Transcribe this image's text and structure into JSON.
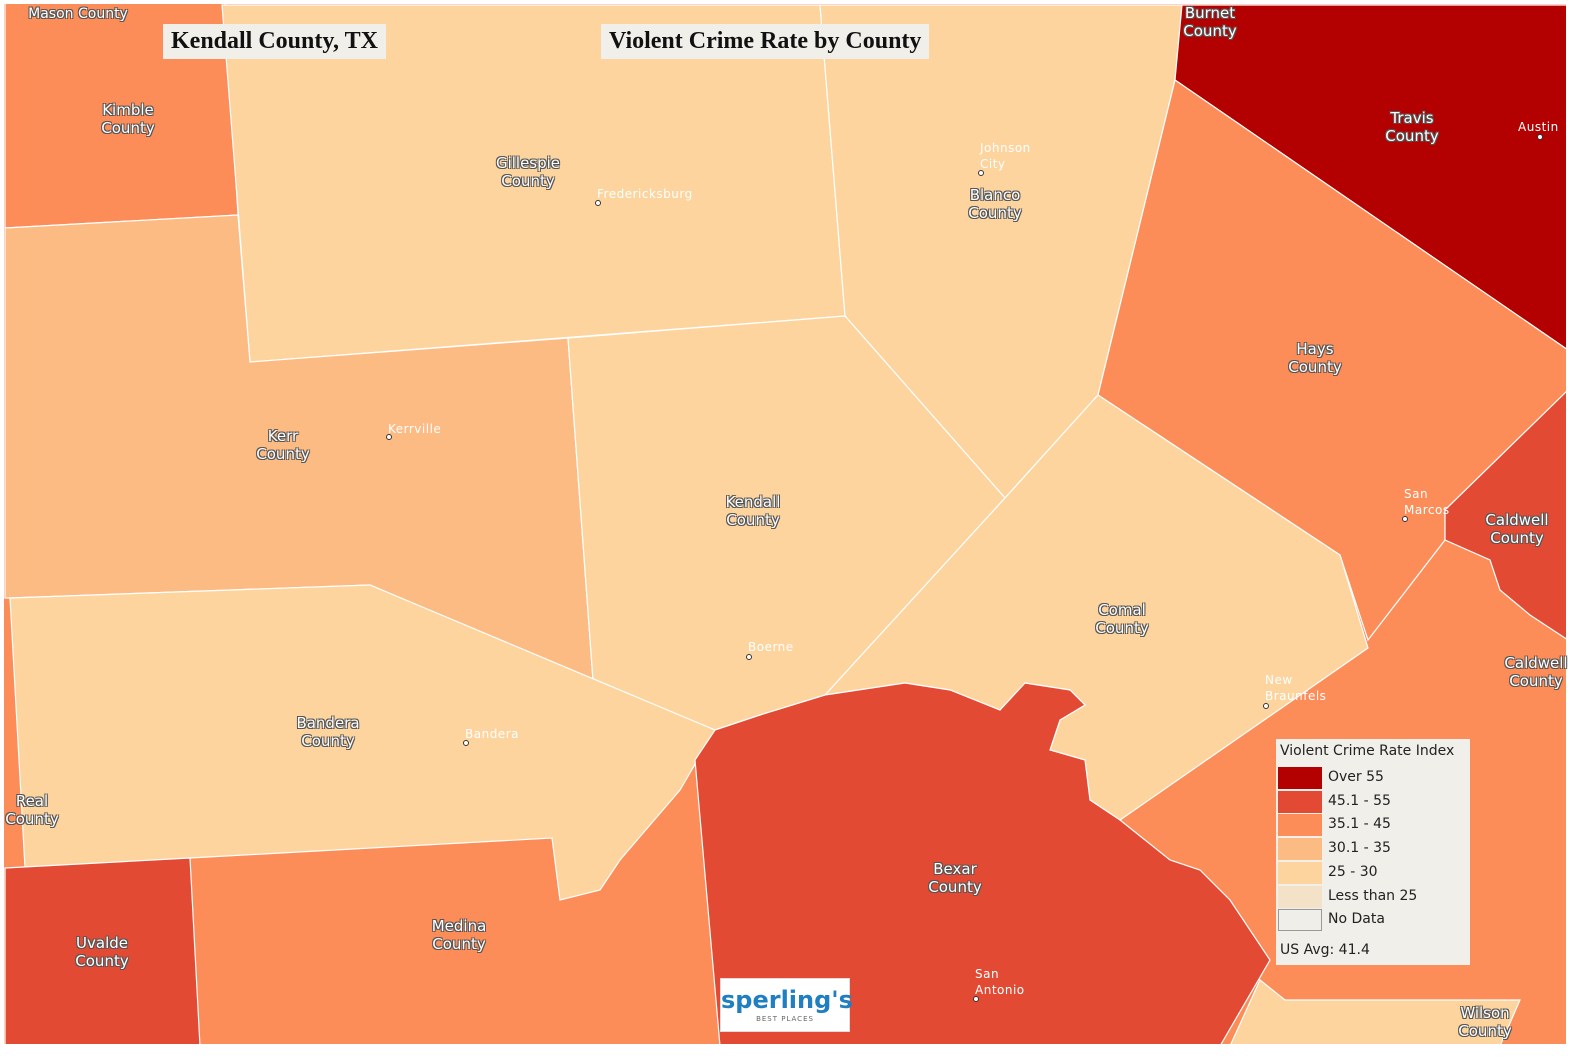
{
  "title": "Kendall County, TX",
  "subtitle": "Violent Crime Rate by County",
  "counties": [
    {
      "label": "Mason County"
    },
    {
      "label": "Kimble County"
    },
    {
      "label": "Gillespie County"
    },
    {
      "label": "Blanco County"
    },
    {
      "label": "Burnet County"
    },
    {
      "label": "Travis County"
    },
    {
      "label": "Hays County"
    },
    {
      "label": "Caldwell County"
    },
    {
      "label": "Caldwell County"
    },
    {
      "label": "Kerr County"
    },
    {
      "label": "Kendall County"
    },
    {
      "label": "Comal County"
    },
    {
      "label": "Bandera County"
    },
    {
      "label": "Real County"
    },
    {
      "label": "Uvalde County"
    },
    {
      "label": "Medina County"
    },
    {
      "label": "Bexar County"
    },
    {
      "label": "Wilson County"
    }
  ],
  "cities": [
    {
      "label": "Fredericksburg"
    },
    {
      "label": "Johnson City"
    },
    {
      "label": "Kerrville"
    },
    {
      "label": "Boerne"
    },
    {
      "label": "Bandera"
    },
    {
      "label": "San Marcos"
    },
    {
      "label": "New Braunfels"
    },
    {
      "label": "San Antonio"
    },
    {
      "label": "Austin"
    }
  ],
  "legend": {
    "title": "Violent Crime Rate Index",
    "items": [
      {
        "label": "Over 55",
        "color": "#b30000"
      },
      {
        "label": "45.1 - 55",
        "color": "#e34a33"
      },
      {
        "label": "35.1 - 45",
        "color": "#fc8d59"
      },
      {
        "label": "30.1 - 35",
        "color": "#fdbb84"
      },
      {
        "label": "25 - 30",
        "color": "#fdd49e"
      },
      {
        "label": "Less than 25",
        "color": "#f3e2c7"
      },
      {
        "label": "No Data",
        "color": "#f0eee8"
      }
    ],
    "note": "US Avg: 41.4"
  },
  "logo": {
    "name": "sperling's",
    "tagline": "BEST PLACES"
  }
}
